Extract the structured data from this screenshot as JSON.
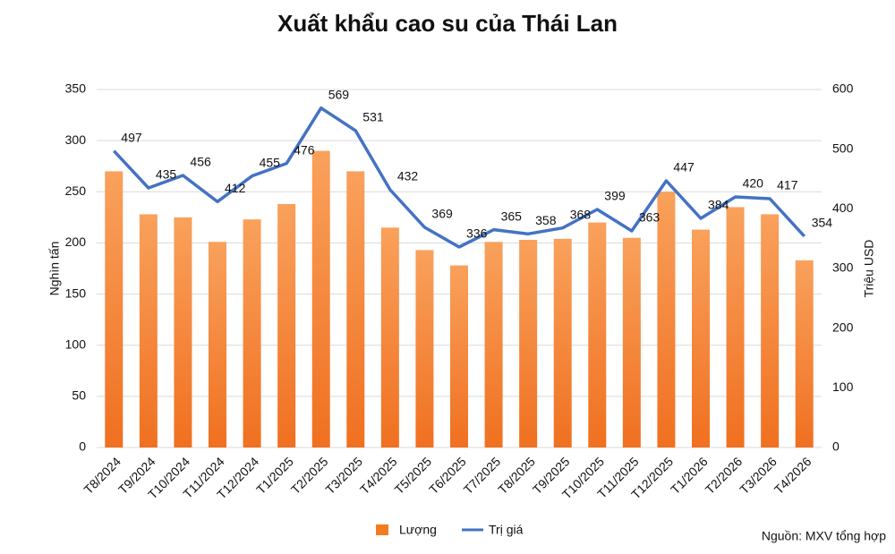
{
  "chart_data": {
    "type": "bar-line",
    "title": "Xuất khẩu cao su của Thái Lan",
    "categories": [
      "T8/2024",
      "T9/2024",
      "T10/2024",
      "T11/2024",
      "T12/2024",
      "T1/2025",
      "T2/2025",
      "T3/2025",
      "T4/2025",
      "T5/2025",
      "T6/2025",
      "T7/2025",
      "T8/2025",
      "T9/2025",
      "T10/2025",
      "T11/2025",
      "T12/2025",
      "T1/2026",
      "T2/2026",
      "T3/2026",
      "T4/2026"
    ],
    "series": [
      {
        "name": "Lượng",
        "type": "bar",
        "color": "#f47b20",
        "values": [
          270,
          228,
          225,
          201,
          223,
          238,
          290,
          270,
          215,
          193,
          178,
          201,
          203,
          204,
          220,
          205,
          250,
          213,
          235,
          228,
          183
        ]
      },
      {
        "name": "Trị giá",
        "type": "line",
        "axis": "y2",
        "color": "#4472c4",
        "values": [
          497,
          435,
          456,
          412,
          455,
          476,
          569,
          531,
          432,
          369,
          336,
          365,
          358,
          368,
          399,
          363,
          447,
          384,
          420,
          417,
          354
        ]
      }
    ],
    "ylabel": "Nghìn tấn",
    "y2label": "Triệu USD",
    "ylim": [
      0,
      350
    ],
    "yticks": [
      0,
      50,
      100,
      150,
      200,
      250,
      300,
      350
    ],
    "y2lim": [
      0,
      600
    ],
    "y2ticks": [
      0,
      100,
      200,
      300,
      400,
      500,
      600
    ],
    "grid": true,
    "legend": "bottom",
    "source": "Nguồn: MXV tổng hợp"
  }
}
